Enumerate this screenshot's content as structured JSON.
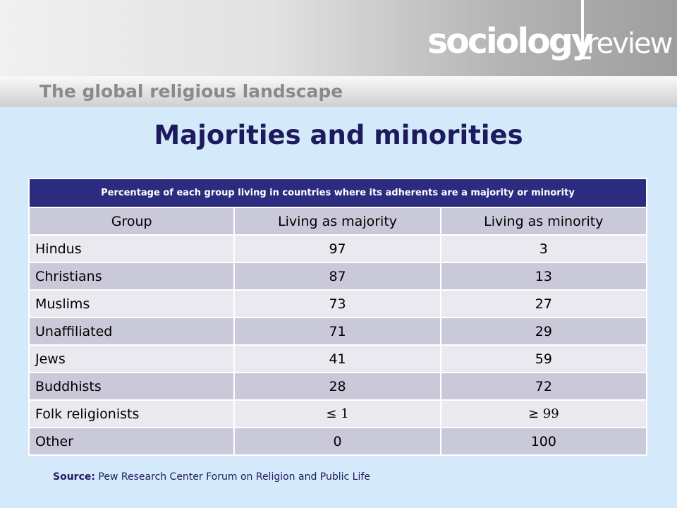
{
  "logo": {
    "word1": "sociology",
    "word2": "review"
  },
  "section_title": "The global religious landscape",
  "title": "Majorities and minorities",
  "table": {
    "caption": "Percentage of each group living in countries where its adherents are a majority or minority",
    "headers": [
      "Group",
      "Living as majority",
      "Living as minority"
    ],
    "rows": [
      [
        "Hindus",
        "97",
        "3"
      ],
      [
        "Christians",
        "87",
        "13"
      ],
      [
        "Muslims",
        "73",
        "27"
      ],
      [
        "Unaffiliated",
        "71",
        "29"
      ],
      [
        "Jews",
        "41",
        "59"
      ],
      [
        "Buddhists",
        "28",
        "72"
      ],
      [
        "Folk religionists",
        "≤ 1",
        "≥ 99"
      ],
      [
        "Other",
        "0",
        "100"
      ]
    ]
  },
  "source": {
    "label": "Source:",
    "text": "Pew Research Center Forum on Religion and Public Life"
  },
  "colors": {
    "title": "#1e1a5e",
    "caption_bg": "#2b2c80",
    "background": "#d4eafa"
  }
}
